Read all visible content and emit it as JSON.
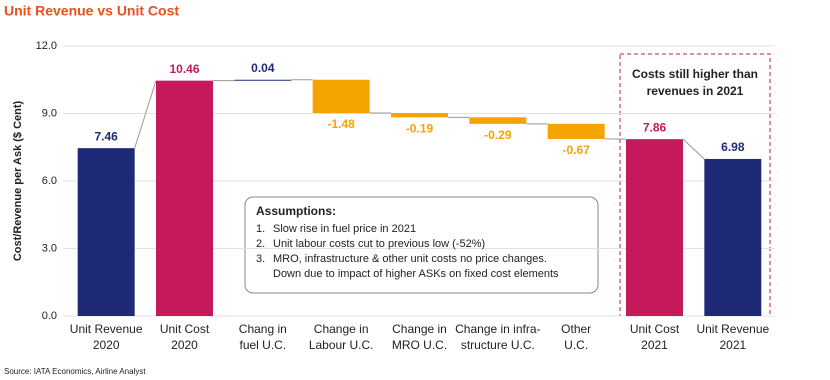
{
  "chart_data": {
    "type": "waterfall",
    "title": "Unit Revenue vs Unit Cost",
    "y_label": "Cost/Revenue per Ask ($ Cent)",
    "categories": [
      [
        "Unit Revenue",
        "2020"
      ],
      [
        "Unit Cost",
        "2020"
      ],
      [
        "Chang in",
        "fuel U.C."
      ],
      [
        "Change in",
        "Labour U.C."
      ],
      [
        "Change in",
        "MRO U.C."
      ],
      [
        "Change in infra-",
        "structure U.C."
      ],
      [
        "Other",
        "U.C."
      ],
      [
        "Unit Cost",
        "2021"
      ],
      [
        "Unit Revenue",
        "2021"
      ]
    ],
    "values": [
      7.46,
      10.46,
      0.04,
      -1.48,
      -0.19,
      -0.29,
      -0.67,
      7.86,
      6.98
    ],
    "measure": [
      "absolute",
      "absolute",
      "relative",
      "relative",
      "relative",
      "relative",
      "relative",
      "absolute",
      "absolute"
    ],
    "colors": [
      "#1e2a78",
      "#c41a5c",
      "#1e2a78",
      "#f5a300",
      "#f5a300",
      "#f5a300",
      "#f5a300",
      "#c41a5c",
      "#1e2a78"
    ],
    "ylim": [
      0,
      12
    ],
    "yticks": [
      {
        "value": 0,
        "label": "0.0"
      },
      {
        "value": 3,
        "label": "3.0"
      },
      {
        "value": 6,
        "label": "6.0"
      },
      {
        "value": 9,
        "label": "9.0"
      },
      {
        "value": 12,
        "label": "12.0"
      }
    ],
    "grid": true,
    "annotations": {
      "assumptions": {
        "title": "Assumptions:",
        "items": [
          {
            "number": "1.",
            "lines": [
              "Slow rise in fuel price in 2021"
            ]
          },
          {
            "number": "2.",
            "lines": [
              "Unit labour costs cut to previous low (-52%)"
            ]
          },
          {
            "number": "3.",
            "lines": [
              "MRO, infrastructure & other unit costs no price changes.",
              "Down due to impact of higher ASKs on fixed cost elements"
            ]
          }
        ]
      },
      "highlight": {
        "lines": [
          "Costs still higher than",
          "revenues in 2021"
        ]
      }
    }
  },
  "source": "Source: IATA Economics, Airline Analyst"
}
